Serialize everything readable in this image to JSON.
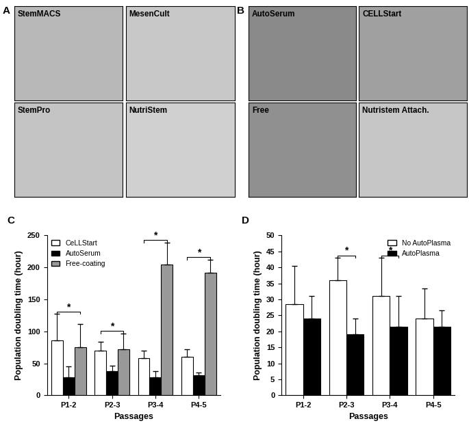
{
  "images": {
    "panels": [
      {
        "label": "A",
        "tiles": [
          "StemMACS",
          "MesenCult",
          "StemPro",
          "NutriStem"
        ]
      },
      {
        "label": "B",
        "tiles": [
          "AutoSerum",
          "CELLStart",
          "Free",
          "Nutristem Attach."
        ]
      }
    ]
  },
  "chart_data": [
    {
      "type": "bar",
      "panel_label": "C",
      "x_label": "Passages",
      "y_label": "Population doubling time (hour)",
      "categories": [
        "P1-2",
        "P2-3",
        "P3-4",
        "P4-5"
      ],
      "series": [
        {
          "name": "CeLLStart",
          "color": "#ffffff",
          "values": [
            86,
            70,
            58,
            60
          ],
          "errors": [
            41,
            14,
            12,
            12
          ]
        },
        {
          "name": "AutoSerum",
          "color": "#000000",
          "values": [
            28,
            38,
            28,
            31
          ],
          "errors": [
            17,
            8,
            10,
            5
          ]
        },
        {
          "name": "Free-coating",
          "color": "#999999",
          "values": [
            75,
            72,
            204,
            192
          ],
          "errors": [
            36,
            25,
            35,
            20
          ]
        }
      ],
      "ylim": [
        0,
        250
      ],
      "yticks": [
        0,
        50,
        100,
        150,
        200,
        250
      ],
      "legend": "upper left",
      "significance": [
        {
          "category": "P1-2",
          "from": "CeLLStart",
          "to": "Free-coating",
          "label": "*"
        },
        {
          "category": "P2-3",
          "from": "CeLLStart",
          "to": "Free-coating",
          "label": "*"
        },
        {
          "category": "P3-4",
          "from": "CeLLStart",
          "to": "Free-coating",
          "label": "*"
        },
        {
          "category": "P4-5",
          "from": "CeLLStart",
          "to": "Free-coating",
          "label": "*"
        }
      ]
    },
    {
      "type": "bar",
      "panel_label": "D",
      "x_label": "Passages",
      "y_label": "Population doubling time (hour)",
      "categories": [
        "P1-2",
        "P2-3",
        "P3-4",
        "P4-5"
      ],
      "series": [
        {
          "name": "No AutoPlasma",
          "color": "#ffffff",
          "values": [
            28.5,
            36,
            31,
            24
          ],
          "errors": [
            12,
            7,
            12,
            9.5
          ]
        },
        {
          "name": "AutoPlasma",
          "color": "#000000",
          "values": [
            24,
            19,
            21.5,
            21.5
          ],
          "errors": [
            7,
            5,
            9.5,
            5
          ]
        }
      ],
      "ylim": [
        0,
        50
      ],
      "yticks": [
        0,
        5,
        10,
        15,
        20,
        25,
        30,
        35,
        40,
        45,
        50
      ],
      "legend": "upper right",
      "significance": [
        {
          "category": "P2-3",
          "from": "No AutoPlasma",
          "to": "AutoPlasma",
          "label": "*"
        },
        {
          "category": "P3-4",
          "from": "No AutoPlasma",
          "to": "AutoPlasma",
          "label": "*"
        }
      ]
    }
  ]
}
